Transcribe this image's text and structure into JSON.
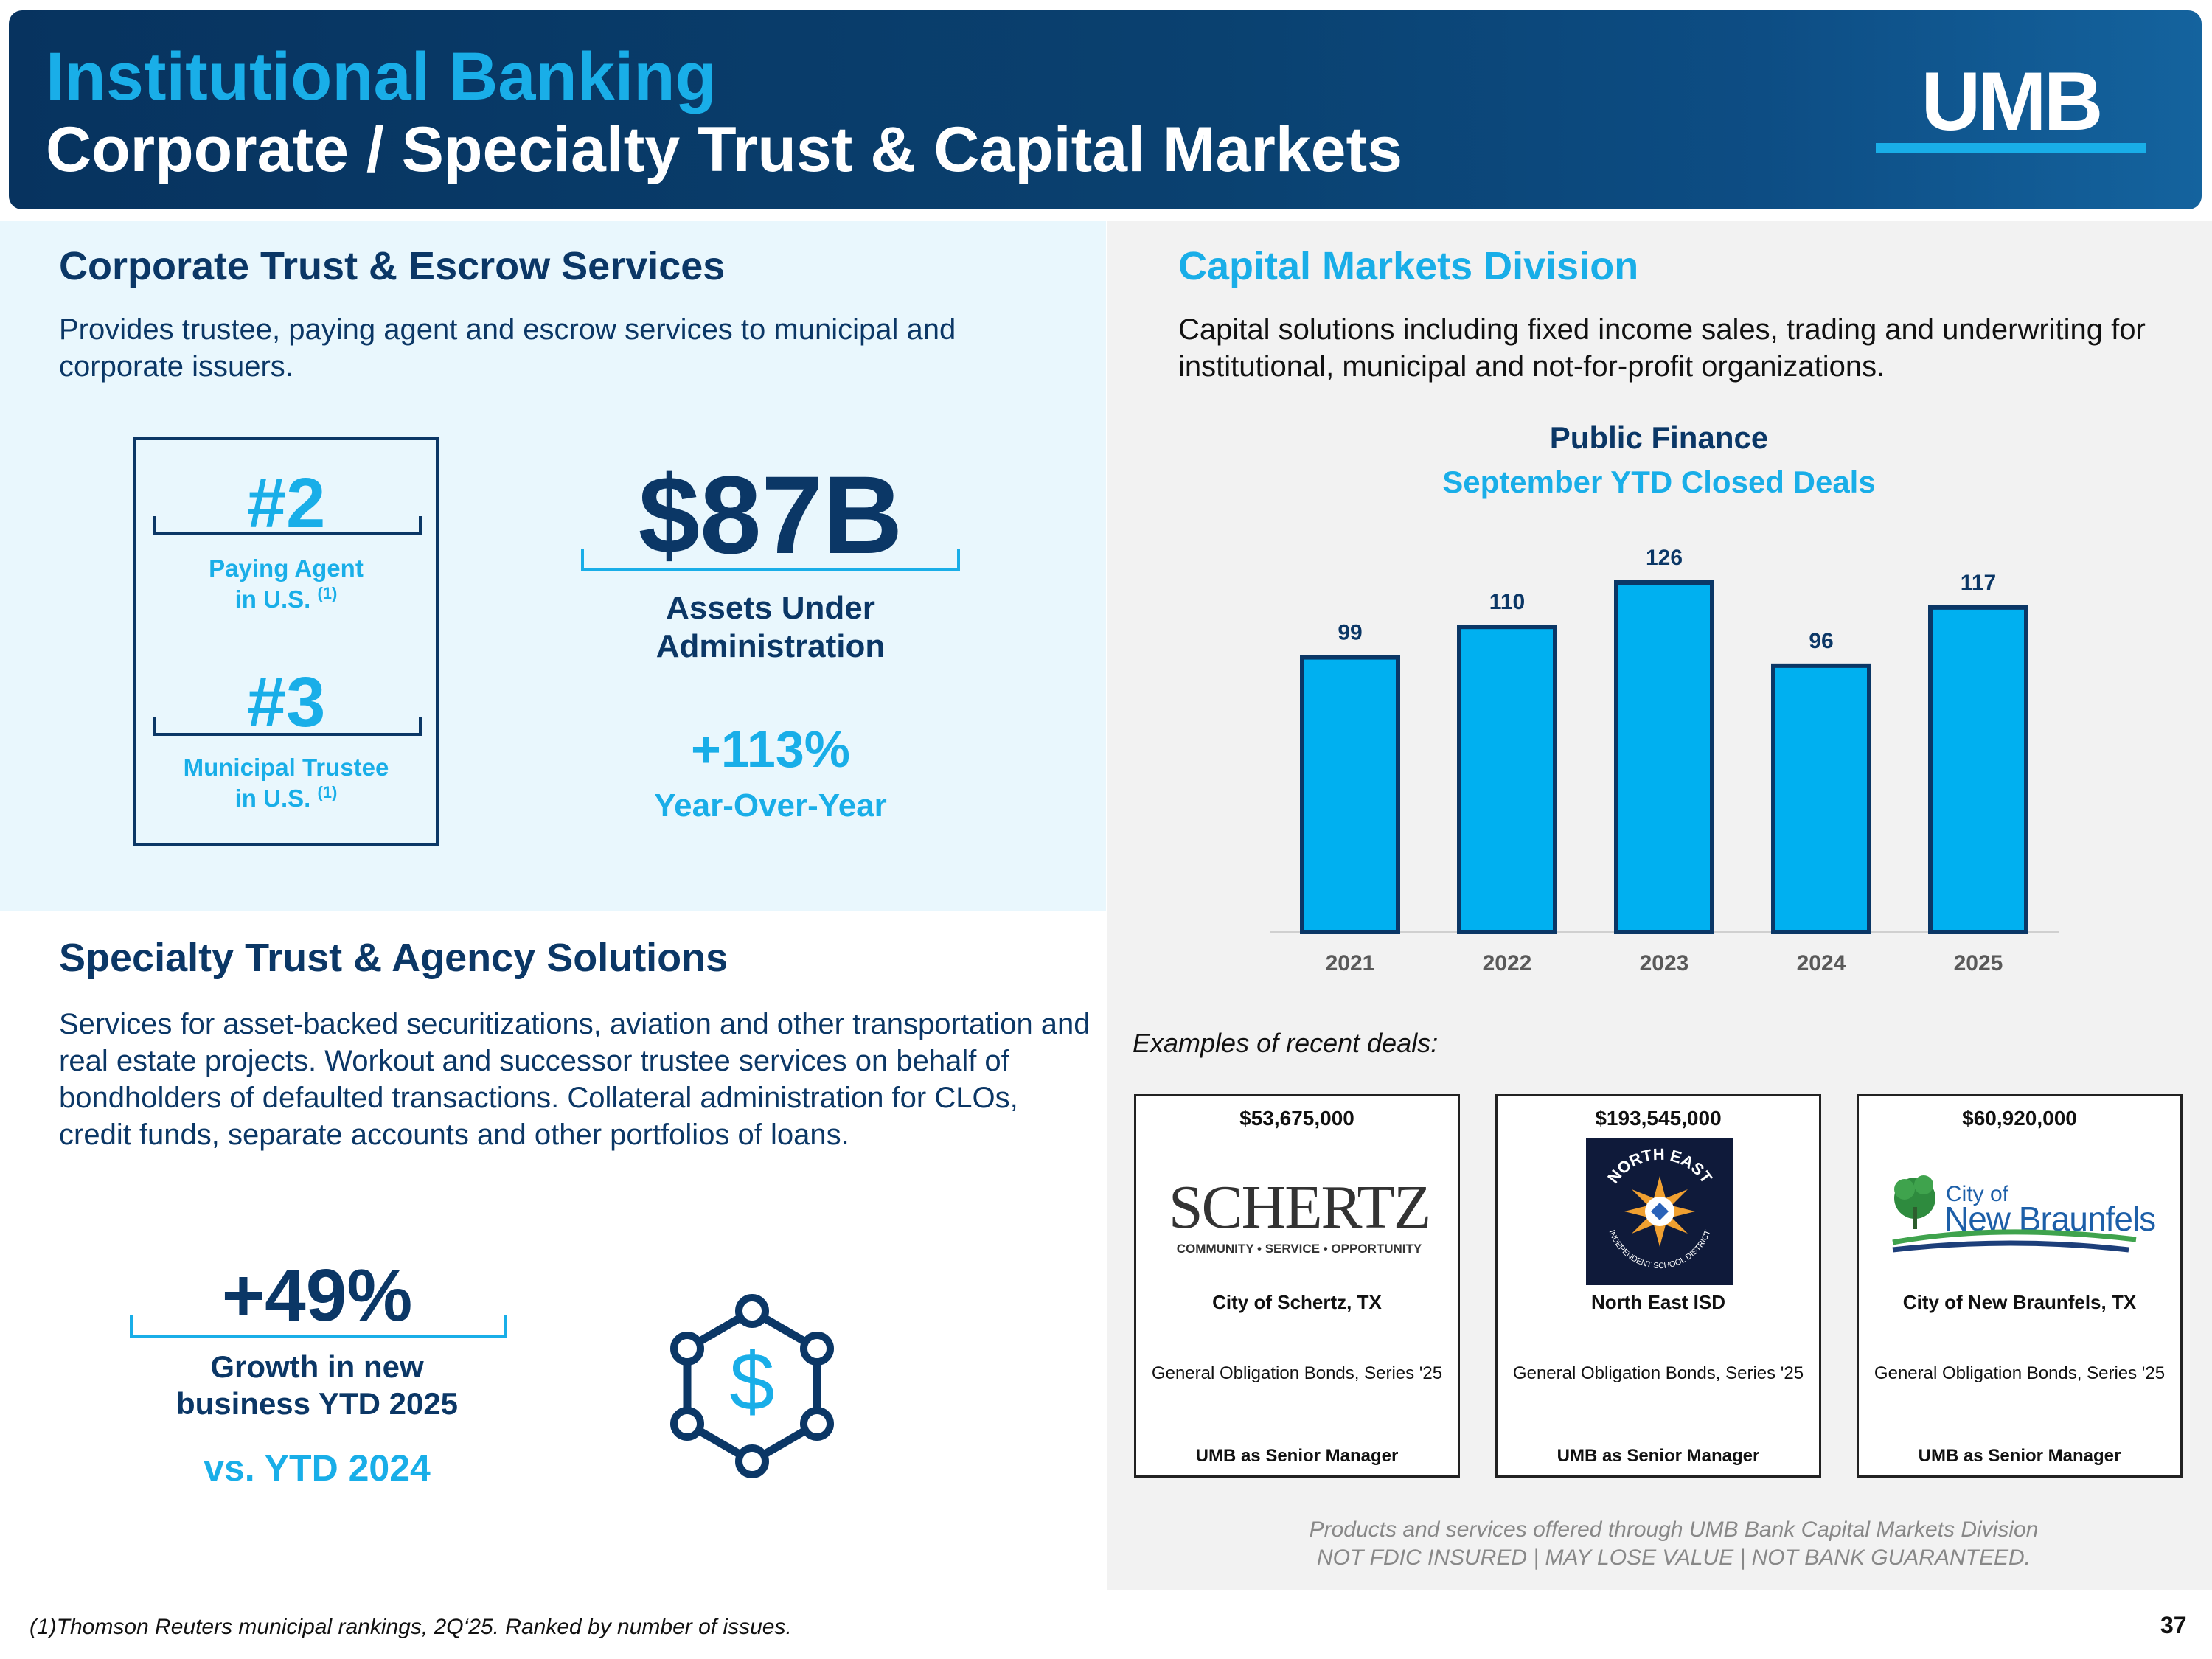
{
  "header": {
    "title_line1": "Institutional Banking",
    "title_line2": "Corporate / Specialty Trust & Capital Markets",
    "logo_text": "UMB"
  },
  "corporate_trust": {
    "title": "Corporate Trust & Escrow Services",
    "description": "Provides trustee, paying agent and escrow services to municipal and corporate issuers.",
    "rank1": {
      "value": "#2",
      "label_line1": "Paying Agent",
      "label_line2": "in U.S.",
      "footnote_marker": "(1)"
    },
    "rank2": {
      "value": "#3",
      "label_line1": "Municipal Trustee",
      "label_line2": "in U.S.",
      "footnote_marker": "(1)"
    },
    "assets_value": "$87B",
    "assets_label_line1": "Assets Under",
    "assets_label_line2": "Administration",
    "growth_value": "+113%",
    "growth_label": "Year-Over-Year"
  },
  "specialty_trust": {
    "title": "Specialty Trust & Agency Solutions",
    "description": "Services for asset-backed securitizations, aviation and other transportation and real estate projects. Workout and successor trustee services on behalf of bondholders of defaulted transactions. Collateral administration for CLOs, credit funds, separate accounts and other portfolios of loans.",
    "growth_value": "+49%",
    "growth_label_line1": "Growth in new",
    "growth_label_line2": "business YTD 2025",
    "comparison": "vs. YTD 2024",
    "icon_symbol": "$"
  },
  "capital_markets": {
    "title": "Capital Markets Division",
    "description": "Capital solutions including fixed income sales, trading and underwriting for institutional, municipal and not-for-profit organizations."
  },
  "chart_data": {
    "type": "bar",
    "title": "Public Finance",
    "subtitle": "September YTD Closed Deals",
    "categories": [
      "2021",
      "2022",
      "2023",
      "2024",
      "2025"
    ],
    "values": [
      99,
      110,
      126,
      96,
      117
    ],
    "xlabel": "",
    "ylabel": "",
    "ylim": [
      0,
      126
    ],
    "grid": false,
    "bar_color": "#00b0f0"
  },
  "deals": {
    "heading": "Examples of recent deals:",
    "items": [
      {
        "amount": "$53,675,000",
        "logo_main": "SCHERTZ",
        "logo_tagline": "COMMUNITY • SERVICE • OPPORTUNITY",
        "name": "City of Schertz, TX",
        "bond": "General Obligation Bonds, Series '25",
        "role": "UMB as Senior Manager"
      },
      {
        "amount": "$193,545,000",
        "logo_main": "NORTH EAST",
        "logo_tagline": "INDEPENDENT SCHOOL DISTRICT",
        "name": "North East ISD",
        "bond": "General Obligation Bonds, Series '25",
        "role": "UMB as Senior Manager"
      },
      {
        "amount": "$60,920,000",
        "logo_main": "New Braunfels",
        "logo_tagline": "City of",
        "name": "City of New Braunfels, TX",
        "bond": "General Obligation Bonds, Series '25",
        "role": "UMB as Senior Manager"
      }
    ]
  },
  "disclaimer": {
    "line1": "Products and services offered through UMB Bank Capital Markets Division",
    "line2": "NOT FDIC INSURED | MAY LOSE VALUE  | NOT BANK GUARANTEED."
  },
  "footnote": "(1)Thomson Reuters municipal rankings, 2Q‘25. Ranked by number of issues.",
  "page_number": "37",
  "colors": {
    "navy": "#0b3766",
    "cyan": "#19aee8",
    "bar": "#00b0f0"
  }
}
